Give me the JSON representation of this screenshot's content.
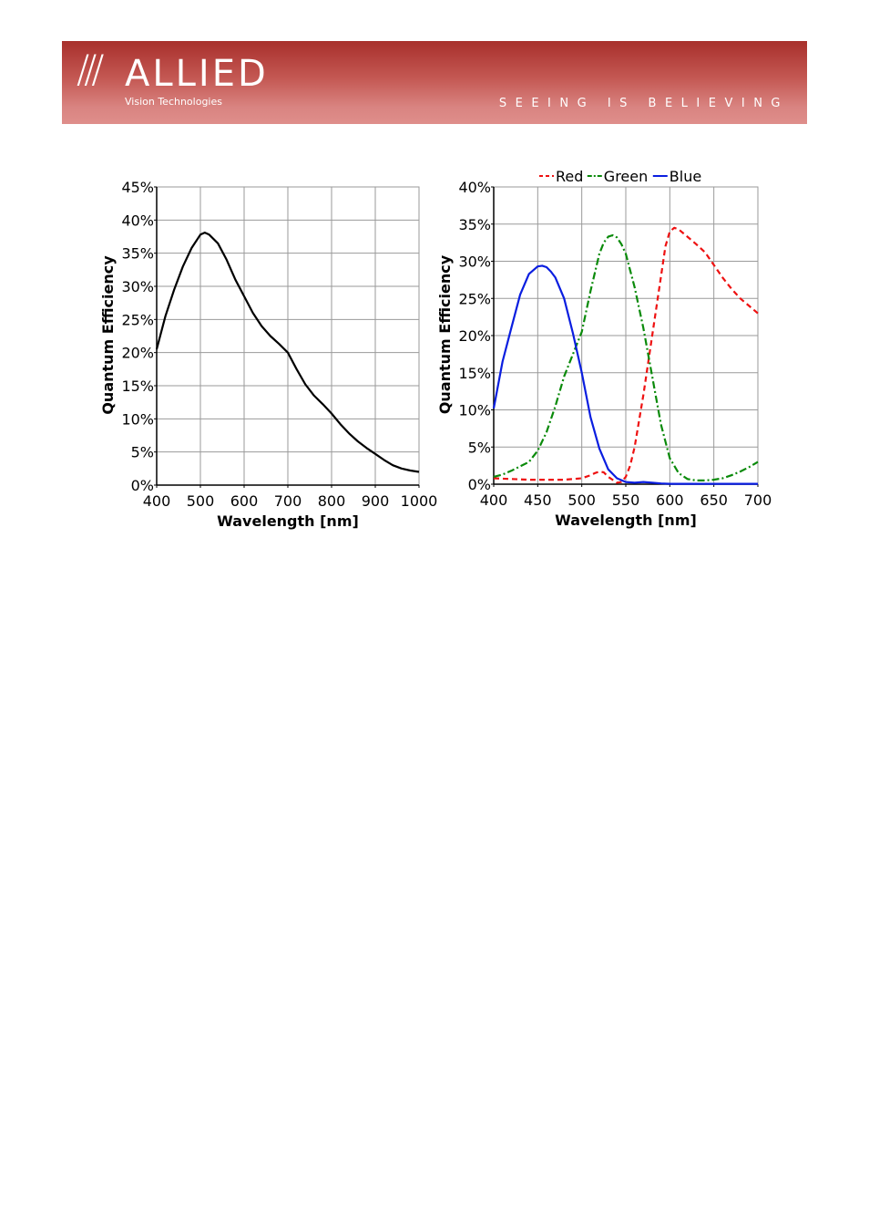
{
  "header": {
    "slashes": "///",
    "brand": "ALLIED",
    "subtitle": "Vision Technologies",
    "tagline": "SEEING IS BELIEVING",
    "colors": {
      "banner_top": "#a8302c",
      "banner_bottom": "#df8e8b"
    }
  },
  "chart_data": [
    {
      "type": "line",
      "title": "",
      "xlabel": "Wavelength [nm]",
      "ylabel": "Quantum Efficiency",
      "xlim": [
        400,
        1000
      ],
      "ylim": [
        0,
        45
      ],
      "xticks": [
        400,
        500,
        600,
        700,
        800,
        900,
        1000
      ],
      "xtick_labels": [
        "400",
        "500",
        "600",
        "700",
        "800",
        "900",
        "1000"
      ],
      "yticks": [
        0,
        5,
        10,
        15,
        20,
        25,
        30,
        35,
        40,
        45
      ],
      "ytick_labels": [
        "0%",
        "5%",
        "10%",
        "15%",
        "20%",
        "25%",
        "30%",
        "35%",
        "40%",
        "45%"
      ],
      "grid": true,
      "series": [
        {
          "color": "#000000",
          "dash": "",
          "x": [
            400,
            420,
            440,
            460,
            480,
            500,
            510,
            520,
            540,
            560,
            580,
            600,
            620,
            640,
            660,
            680,
            700,
            720,
            740,
            760,
            780,
            800,
            820,
            840,
            860,
            880,
            900,
            920,
            940,
            960,
            980,
            1000
          ],
          "y": [
            20.5,
            25.5,
            29.5,
            33,
            35.8,
            37.8,
            38.1,
            37.8,
            36.5,
            34,
            31,
            28.5,
            26,
            24,
            22.5,
            21.3,
            20,
            17.5,
            15.2,
            13.5,
            12.2,
            10.8,
            9.2,
            7.8,
            6.6,
            5.6,
            4.7,
            3.8,
            3.0,
            2.5,
            2.2,
            2.0
          ]
        }
      ]
    },
    {
      "type": "line",
      "title": "",
      "xlabel": "Wavelength [nm]",
      "ylabel": "Quantum Efficiency",
      "xlim": [
        400,
        700
      ],
      "ylim": [
        0,
        40
      ],
      "xticks": [
        400,
        450,
        500,
        550,
        600,
        650,
        700
      ],
      "xtick_labels": [
        "400",
        "450",
        "500",
        "550",
        "600",
        "650",
        "700"
      ],
      "yticks": [
        0,
        5,
        10,
        15,
        20,
        25,
        30,
        35,
        40
      ],
      "ytick_labels": [
        "0%",
        "5%",
        "10%",
        "15%",
        "20%",
        "25%",
        "30%",
        "35%",
        "40%"
      ],
      "grid": true,
      "legend_position": "top",
      "series": [
        {
          "name": "Red",
          "color": "#ee1111",
          "dash": "6,4",
          "x": [
            400,
            420,
            440,
            460,
            480,
            500,
            510,
            515,
            520,
            525,
            530,
            540,
            545,
            550,
            555,
            560,
            570,
            580,
            590,
            595,
            600,
            605,
            610,
            620,
            630,
            640,
            650,
            660,
            670,
            680,
            690,
            700
          ],
          "y": [
            0.8,
            0.7,
            0.6,
            0.6,
            0.6,
            0.8,
            1.2,
            1.5,
            1.7,
            1.6,
            1.0,
            0.2,
            0.3,
            1.0,
            2.5,
            5.0,
            12,
            20,
            28,
            32,
            34,
            34.5,
            34.3,
            33.3,
            32.3,
            31.2,
            29.5,
            27.8,
            26.3,
            25.0,
            24.0,
            23.0
          ]
        },
        {
          "name": "Green",
          "color": "#0a8a0a",
          "dash": "8,3,2,3",
          "x": [
            400,
            410,
            420,
            430,
            440,
            450,
            460,
            470,
            480,
            490,
            500,
            510,
            520,
            525,
            530,
            535,
            540,
            545,
            550,
            560,
            570,
            580,
            590,
            600,
            610,
            620,
            630,
            640,
            650,
            660,
            670,
            680,
            690,
            700
          ],
          "y": [
            1.0,
            1.3,
            1.8,
            2.4,
            3.0,
            4.5,
            7.0,
            10.5,
            14.5,
            17.5,
            20.5,
            26.0,
            31.0,
            32.5,
            33.3,
            33.5,
            33.2,
            32.3,
            31.0,
            26.5,
            21.0,
            14.5,
            8.0,
            3.5,
            1.5,
            0.7,
            0.5,
            0.5,
            0.6,
            0.8,
            1.2,
            1.7,
            2.3,
            3.0
          ]
        },
        {
          "name": "Blue",
          "color": "#0a1ee0",
          "dash": "",
          "x": [
            400,
            410,
            420,
            430,
            440,
            450,
            455,
            460,
            465,
            470,
            480,
            490,
            500,
            510,
            520,
            530,
            540,
            550,
            560,
            570,
            580,
            590,
            600,
            620,
            650,
            700
          ],
          "y": [
            10.2,
            16.5,
            21.0,
            25.5,
            28.3,
            29.3,
            29.4,
            29.2,
            28.6,
            27.8,
            25.0,
            20.3,
            15.0,
            9.0,
            4.8,
            2.0,
            0.8,
            0.3,
            0.2,
            0.3,
            0.2,
            0.1,
            0.05,
            0.05,
            0.05,
            0.05
          ]
        }
      ]
    }
  ]
}
